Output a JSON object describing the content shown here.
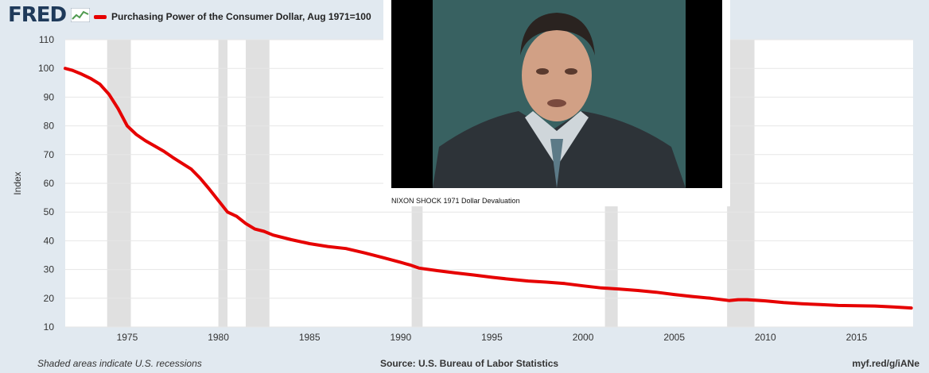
{
  "header": {
    "logo_text": "FRED",
    "legend_label": "Purchasing Power of the Consumer Dollar, Aug 1971=100"
  },
  "video": {
    "caption": "NIXON SHOCK 1971 Dollar Devaluation"
  },
  "footer": {
    "recession_note": "Shaded areas indicate U.S. recessions",
    "source": "Source: U.S. Bureau of Labor Statistics",
    "link": "myf.red/g/iANe"
  },
  "colors": {
    "series": "#e60000",
    "background": "#e1e9f0",
    "plot": "#ffffff",
    "recession": "#e0e0e0"
  },
  "chart_data": {
    "type": "line",
    "title": "Purchasing Power of the Consumer Dollar, Aug 1971=100",
    "ylabel": "Index",
    "xlabel": "",
    "xlim": [
      1971.6,
      2018.1
    ],
    "ylim": [
      10,
      110
    ],
    "x_ticks": [
      1975,
      1980,
      1985,
      1990,
      1995,
      2000,
      2005,
      2010,
      2015
    ],
    "y_ticks": [
      10,
      20,
      30,
      40,
      50,
      60,
      70,
      80,
      90,
      100,
      110
    ],
    "grid": "horizontal",
    "legend": "top-left",
    "recessions": [
      [
        1973.9,
        1975.2
      ],
      [
        1980.0,
        1980.5
      ],
      [
        1981.5,
        1982.8
      ],
      [
        1990.6,
        1991.2
      ],
      [
        2001.2,
        2001.9
      ],
      [
        2007.9,
        2009.4
      ]
    ],
    "series": [
      {
        "name": "Purchasing Power of the Consumer Dollar, Aug 1971=100",
        "color": "#e60000",
        "x": [
          1971.6,
          1972.0,
          1972.5,
          1973.0,
          1973.5,
          1974.0,
          1974.5,
          1975.0,
          1975.5,
          1976.0,
          1976.5,
          1977.0,
          1977.5,
          1978.0,
          1978.5,
          1979.0,
          1979.5,
          1980.0,
          1980.5,
          1981.0,
          1981.5,
          1982.0,
          1982.5,
          1983.0,
          1984.0,
          1985.0,
          1986.0,
          1987.0,
          1988.0,
          1989.0,
          1990.0,
          1990.5,
          1991.0,
          1992.0,
          1993.0,
          1994.0,
          1995.0,
          1996.0,
          1997.0,
          1998.0,
          1999.0,
          2000.0,
          2001.0,
          2002.0,
          2003.0,
          2004.0,
          2005.0,
          2006.0,
          2007.0,
          2008.0,
          2008.5,
          2009.0,
          2010.0,
          2011.0,
          2012.0,
          2013.0,
          2014.0,
          2015.0,
          2016.0,
          2017.0,
          2018.0
        ],
        "y": [
          100,
          99.3,
          98,
          96.5,
          94.5,
          91,
          86,
          80,
          77,
          74.8,
          73,
          71.2,
          69,
          67,
          65,
          61.8,
          58,
          54,
          50,
          48.5,
          46,
          44.1,
          43.3,
          42,
          40.4,
          39,
          38,
          37.3,
          35.8,
          34.2,
          32.5,
          31.6,
          30.5,
          29.6,
          28.8,
          28.1,
          27.3,
          26.6,
          26,
          25.6,
          25.1,
          24.3,
          23.6,
          23.2,
          22.7,
          22.1,
          21.3,
          20.6,
          20,
          19.2,
          19.5,
          19.5,
          19.1,
          18.5,
          18.1,
          17.8,
          17.5,
          17.4,
          17.3,
          17,
          16.6
        ]
      }
    ]
  }
}
